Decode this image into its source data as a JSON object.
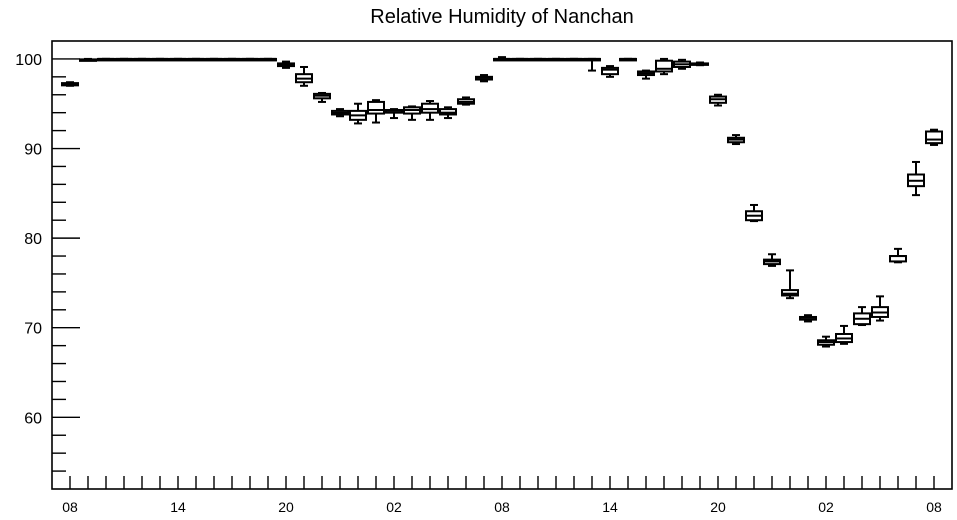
{
  "chart_data": {
    "type": "box",
    "title": "Relative Humidity of Nanchan",
    "xlabel": "",
    "ylabel": "",
    "xlim": [
      0,
      49
    ],
    "ylim": [
      52,
      102
    ],
    "y_ticks": [
      60,
      70,
      80,
      90,
      100
    ],
    "x_tick_positions": [
      1,
      7,
      13,
      19,
      25,
      31,
      37,
      43,
      49
    ],
    "x_tick_labels": [
      "08",
      "14",
      "20",
      "02",
      "08",
      "14",
      "20",
      "02",
      "08"
    ],
    "grid": false,
    "legend": "none",
    "colors": {
      "box": "#000000",
      "background": "#ffffff",
      "axis": "#000000"
    },
    "boxes": [
      {
        "x": 1,
        "min": 97.0,
        "q1": 97.05,
        "median": 97.2,
        "q3": 97.3,
        "max": 97.4
      },
      {
        "x": 2,
        "min": 99.85,
        "q1": 99.88,
        "median": 99.9,
        "q3": 99.95,
        "max": 100.0
      },
      {
        "x": 3,
        "min": 100,
        "q1": 100,
        "median": 100,
        "q3": 100,
        "max": 100
      },
      {
        "x": 4,
        "min": 100,
        "q1": 100,
        "median": 100,
        "q3": 100,
        "max": 100
      },
      {
        "x": 5,
        "min": 100,
        "q1": 100,
        "median": 100,
        "q3": 100,
        "max": 100
      },
      {
        "x": 6,
        "min": 100,
        "q1": 100,
        "median": 100,
        "q3": 100,
        "max": 100
      },
      {
        "x": 7,
        "min": 100,
        "q1": 100,
        "median": 100,
        "q3": 100,
        "max": 100
      },
      {
        "x": 8,
        "min": 100,
        "q1": 100,
        "median": 100,
        "q3": 100,
        "max": 100
      },
      {
        "x": 9,
        "min": 100,
        "q1": 100,
        "median": 100,
        "q3": 100,
        "max": 100
      },
      {
        "x": 10,
        "min": 100,
        "q1": 100,
        "median": 100,
        "q3": 100,
        "max": 100
      },
      {
        "x": 11,
        "min": 100,
        "q1": 100,
        "median": 100,
        "q3": 100,
        "max": 100
      },
      {
        "x": 12,
        "min": 100,
        "q1": 100,
        "median": 100,
        "q3": 100,
        "max": 100
      },
      {
        "x": 13,
        "min": 99.0,
        "q1": 99.2,
        "median": 99.35,
        "q3": 99.5,
        "max": 99.7
      },
      {
        "x": 14,
        "min": 97.0,
        "q1": 97.4,
        "median": 97.8,
        "q3": 98.3,
        "max": 99.1
      },
      {
        "x": 15,
        "min": 95.2,
        "q1": 95.6,
        "median": 95.9,
        "q3": 96.1,
        "max": 96.2
      },
      {
        "x": 16,
        "min": 93.6,
        "q1": 93.8,
        "median": 94.0,
        "q3": 94.2,
        "max": 94.4
      },
      {
        "x": 17,
        "min": 92.8,
        "q1": 93.2,
        "median": 93.7,
        "q3": 94.2,
        "max": 95.0
      },
      {
        "x": 18,
        "min": 92.9,
        "q1": 93.9,
        "median": 94.3,
        "q3": 95.2,
        "max": 95.4
      },
      {
        "x": 19,
        "min": 93.4,
        "q1": 94.0,
        "median": 94.2,
        "q3": 94.3,
        "max": 94.4
      },
      {
        "x": 20,
        "min": 93.2,
        "q1": 93.9,
        "median": 94.3,
        "q3": 94.6,
        "max": 94.7
      },
      {
        "x": 21,
        "min": 93.2,
        "q1": 94.0,
        "median": 94.4,
        "q3": 95.0,
        "max": 95.3
      },
      {
        "x": 22,
        "min": 93.4,
        "q1": 93.8,
        "median": 94.0,
        "q3": 94.4,
        "max": 94.6
      },
      {
        "x": 23,
        "min": 94.9,
        "q1": 95.0,
        "median": 95.2,
        "q3": 95.5,
        "max": 95.7
      },
      {
        "x": 24,
        "min": 97.5,
        "q1": 97.7,
        "median": 97.9,
        "q3": 98.0,
        "max": 98.2
      },
      {
        "x": 25,
        "min": 99.9,
        "q1": 99.95,
        "median": 100.0,
        "q3": 100.0,
        "max": 100.2
      },
      {
        "x": 26,
        "min": 100,
        "q1": 100,
        "median": 100,
        "q3": 100,
        "max": 100
      },
      {
        "x": 27,
        "min": 100,
        "q1": 100,
        "median": 100,
        "q3": 100,
        "max": 100
      },
      {
        "x": 28,
        "min": 100,
        "q1": 100,
        "median": 100,
        "q3": 100,
        "max": 100
      },
      {
        "x": 29,
        "min": 100,
        "q1": 100,
        "median": 100,
        "q3": 100,
        "max": 100
      },
      {
        "x": 30,
        "min": 98.7,
        "q1": 99.9,
        "median": 100.0,
        "q3": 100.0,
        "max": 100.0
      },
      {
        "x": 31,
        "min": 98.0,
        "q1": 98.3,
        "median": 98.8,
        "q3": 99.0,
        "max": 99.2
      },
      {
        "x": 32,
        "min": 100,
        "q1": 100,
        "median": 100,
        "q3": 100,
        "max": 100
      },
      {
        "x": 33,
        "min": 97.8,
        "q1": 98.2,
        "median": 98.4,
        "q3": 98.6,
        "max": 98.7
      },
      {
        "x": 34,
        "min": 98.3,
        "q1": 98.6,
        "median": 98.9,
        "q3": 99.8,
        "max": 100.0
      },
      {
        "x": 35,
        "min": 98.9,
        "q1": 99.1,
        "median": 99.4,
        "q3": 99.7,
        "max": 99.9
      },
      {
        "x": 36,
        "min": 99.3,
        "q1": 99.35,
        "median": 99.4,
        "q3": 99.5,
        "max": 99.6
      },
      {
        "x": 37,
        "min": 94.8,
        "q1": 95.1,
        "median": 95.5,
        "q3": 95.8,
        "max": 96.0
      },
      {
        "x": 38,
        "min": 90.5,
        "q1": 90.7,
        "median": 91.0,
        "q3": 91.2,
        "max": 91.5
      },
      {
        "x": 39,
        "min": 81.9,
        "q1": 82.0,
        "median": 82.5,
        "q3": 83.0,
        "max": 83.7
      },
      {
        "x": 40,
        "min": 76.9,
        "q1": 77.1,
        "median": 77.4,
        "q3": 77.6,
        "max": 78.2
      },
      {
        "x": 41,
        "min": 73.3,
        "q1": 73.6,
        "median": 73.8,
        "q3": 74.2,
        "max": 76.4
      },
      {
        "x": 42,
        "min": 70.7,
        "q1": 70.9,
        "median": 71.1,
        "q3": 71.2,
        "max": 71.4
      },
      {
        "x": 43,
        "min": 67.9,
        "q1": 68.1,
        "median": 68.4,
        "q3": 68.6,
        "max": 69.0
      },
      {
        "x": 44,
        "min": 68.2,
        "q1": 68.4,
        "median": 68.8,
        "q3": 69.3,
        "max": 70.2
      },
      {
        "x": 45,
        "min": 70.3,
        "q1": 70.4,
        "median": 71.0,
        "q3": 71.6,
        "max": 72.3
      },
      {
        "x": 46,
        "min": 70.8,
        "q1": 71.2,
        "median": 71.7,
        "q3": 72.3,
        "max": 73.5
      },
      {
        "x": 47,
        "min": 77.3,
        "q1": 77.4,
        "median": 78.0,
        "q3": 78.0,
        "max": 78.8
      },
      {
        "x": 48,
        "min": 84.8,
        "q1": 85.8,
        "median": 86.4,
        "q3": 87.1,
        "max": 88.5
      },
      {
        "x": 49,
        "min": 90.4,
        "q1": 90.6,
        "median": 91.0,
        "q3": 91.9,
        "max": 92.1
      }
    ]
  }
}
